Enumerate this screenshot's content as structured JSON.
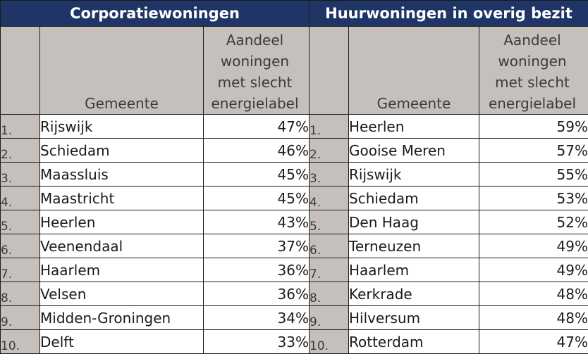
{
  "left": {
    "title": "Corporatiewoningen",
    "col_gemeente": "Gemeente",
    "col_share": [
      "Aandeel",
      "woningen",
      "met slecht",
      "energielabel"
    ],
    "rows": [
      {
        "rank": "1.",
        "name": "Rijswijk",
        "share": "47%"
      },
      {
        "rank": "2.",
        "name": "Schiedam",
        "share": "46%"
      },
      {
        "rank": "3.",
        "name": "Maassluis",
        "share": "45%"
      },
      {
        "rank": "4.",
        "name": "Maastricht",
        "share": "45%"
      },
      {
        "rank": "5.",
        "name": "Heerlen",
        "share": "43%"
      },
      {
        "rank": "6.",
        "name": "Veenendaal",
        "share": "37%"
      },
      {
        "rank": "7.",
        "name": "Haarlem",
        "share": "36%"
      },
      {
        "rank": "8.",
        "name": "Velsen",
        "share": "36%"
      },
      {
        "rank": "9.",
        "name": "Midden-Groningen",
        "share": "34%"
      },
      {
        "rank": "10.",
        "name": "Delft",
        "share": "33%"
      }
    ]
  },
  "right": {
    "title": "Huurwoningen in overig bezit",
    "col_gemeente": "Gemeente",
    "col_share": [
      "Aandeel",
      "woningen",
      "met slecht",
      "energielabel"
    ],
    "rows": [
      {
        "rank": "1.",
        "name": "Heerlen",
        "share": "59%"
      },
      {
        "rank": "2.",
        "name": "Gooise Meren",
        "share": "57%"
      },
      {
        "rank": "3.",
        "name": "Rijswijk",
        "share": "55%"
      },
      {
        "rank": "4.",
        "name": "Schiedam",
        "share": "53%"
      },
      {
        "rank": "5.",
        "name": "Den Haag",
        "share": "52%"
      },
      {
        "rank": "6.",
        "name": "Terneuzen",
        "share": "49%"
      },
      {
        "rank": "7.",
        "name": "Haarlem",
        "share": "49%"
      },
      {
        "rank": "8.",
        "name": "Kerkrade",
        "share": "48%"
      },
      {
        "rank": "9.",
        "name": "Hilversum",
        "share": "48%"
      },
      {
        "rank": "10.",
        "name": "Rotterdam",
        "share": "47%"
      }
    ]
  },
  "colors": {
    "header_bg": "#1f3566",
    "header_text": "#ffffff",
    "column_header_bg": "#c6c0bd",
    "rank_bg": "#c6c0bd",
    "cell_bg": "#ffffff"
  }
}
